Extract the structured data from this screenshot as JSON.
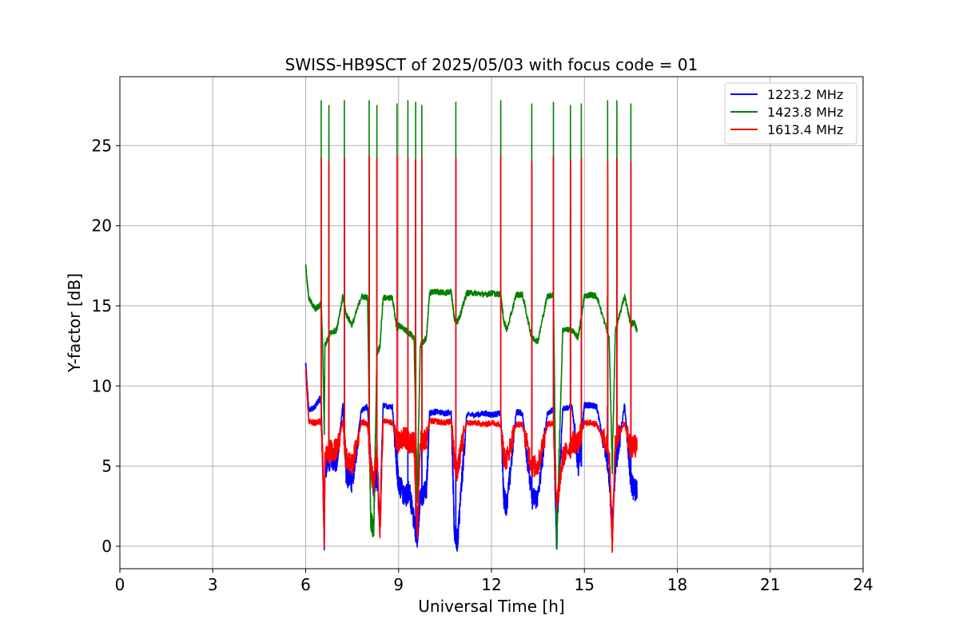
{
  "chart_data": {
    "type": "line",
    "title": "SWISS-HB9SCT of 2025/05/03 with focus code = 01",
    "xlabel": "Universal Time [h]",
    "ylabel": "Y-factor [dB]",
    "xlim": [
      0,
      24
    ],
    "ylim": [
      -1.4,
      29.3
    ],
    "xticks": [
      0,
      3,
      6,
      9,
      12,
      15,
      18,
      21,
      24
    ],
    "yticks": [
      0,
      5,
      10,
      15,
      20,
      25
    ],
    "grid": true,
    "legend_position": "top-right",
    "x_sample": [
      6.0,
      6.1,
      6.3,
      6.45,
      6.5,
      6.55,
      6.6,
      6.62,
      6.8,
      7.0,
      7.2,
      7.3,
      7.5,
      7.8,
      8.0,
      8.1,
      8.2,
      8.3,
      8.4,
      8.5,
      8.8,
      8.95,
      9.0,
      9.2,
      9.35,
      9.5,
      9.6,
      9.7,
      9.9,
      10.0,
      10.2,
      10.5,
      10.7,
      10.8,
      10.9,
      11.0,
      11.2,
      11.5,
      11.8,
      12.0,
      12.3,
      12.4,
      12.5,
      12.8,
      13.0,
      13.3,
      13.5,
      13.8,
      14.0,
      14.1,
      14.3,
      14.6,
      14.8,
      15.0,
      15.2,
      15.4,
      15.8,
      15.9,
      16.0,
      16.3,
      16.5,
      16.6,
      16.7
    ],
    "series": [
      {
        "name": "1223.2 MHz",
        "color": "#0000ff",
        "values": [
          11.4,
          8.5,
          8.7,
          9.2,
          9.0,
          5.0,
          0.2,
          4.8,
          5.5,
          5.3,
          8.8,
          4.5,
          4.0,
          8.5,
          8.7,
          5.0,
          3.6,
          4.5,
          1.5,
          8.8,
          8.7,
          4.8,
          4.0,
          3.0,
          3.5,
          1.5,
          0.5,
          3.0,
          3.5,
          8.3,
          8.4,
          8.3,
          8.4,
          1.0,
          0.2,
          3.0,
          8.2,
          8.2,
          8.3,
          8.2,
          8.3,
          3.0,
          2.5,
          8.4,
          8.3,
          3.0,
          3.0,
          8.3,
          8.5,
          0.1,
          8.6,
          8.7,
          5.0,
          8.8,
          8.8,
          8.7,
          4.5,
          1.0,
          5.0,
          8.8,
          4.0,
          3.5,
          3.5
        ]
      },
      {
        "name": "1423.8 MHz",
        "color": "#008000",
        "values": [
          17.5,
          15.5,
          14.8,
          15.0,
          15.2,
          12.5,
          7.0,
          12.5,
          13.3,
          13.5,
          15.6,
          14.5,
          13.8,
          15.6,
          15.5,
          1.5,
          1.0,
          12.0,
          12.5,
          15.5,
          15.5,
          13.5,
          13.8,
          13.5,
          13.3,
          13.0,
          3.0,
          12.5,
          13.0,
          15.8,
          15.9,
          15.8,
          15.9,
          14.2,
          14.0,
          14.5,
          15.8,
          15.8,
          15.7,
          15.8,
          15.7,
          14.0,
          13.5,
          15.7,
          15.7,
          13.0,
          12.8,
          15.6,
          15.7,
          0.1,
          13.5,
          13.5,
          13.0,
          15.6,
          15.7,
          15.6,
          13.0,
          5.0,
          13.5,
          15.6,
          13.8,
          14.0,
          13.5
        ]
      },
      {
        "name": "1613.4 MHz",
        "color": "#ff0000",
        "values": [
          11.0,
          7.8,
          7.7,
          7.8,
          7.7,
          5.5,
          0.2,
          5.5,
          6.0,
          6.0,
          7.8,
          5.5,
          5.0,
          7.8,
          7.6,
          5.0,
          3.8,
          6.0,
          1.0,
          7.8,
          7.7,
          6.5,
          6.5,
          6.8,
          6.5,
          6.5,
          1.0,
          6.5,
          6.8,
          7.8,
          7.8,
          7.7,
          7.8,
          5.5,
          4.5,
          6.0,
          7.7,
          7.7,
          7.6,
          7.7,
          7.6,
          5.5,
          5.5,
          7.6,
          7.6,
          5.0,
          5.0,
          7.6,
          7.7,
          2.5,
          5.5,
          6.5,
          6.5,
          7.7,
          7.7,
          7.6,
          6.0,
          0.1,
          6.5,
          7.7,
          6.0,
          6.5,
          6.0
        ]
      }
    ],
    "spikes": {
      "x": [
        6.5,
        6.75,
        7.25,
        8.05,
        8.3,
        8.95,
        9.3,
        9.55,
        9.75,
        10.85,
        12.3,
        13.3,
        14.0,
        14.55,
        14.9,
        15.75,
        16.05,
        16.5
      ],
      "green_peak": [
        27.8,
        27.5,
        27.8,
        27.8,
        27.5,
        27.6,
        27.8,
        27.7,
        27.5,
        27.7,
        27.8,
        27.6,
        27.7,
        27.5,
        27.6,
        27.8,
        27.8,
        27.6
      ],
      "red_peak": [
        24.2,
        24.0,
        24.2,
        24.3,
        24.2,
        24.3,
        24.2,
        24.1,
        24.2,
        24.2,
        24.3,
        24.0,
        24.3,
        24.1,
        24.2,
        24.0,
        24.2,
        24.0
      ]
    }
  }
}
